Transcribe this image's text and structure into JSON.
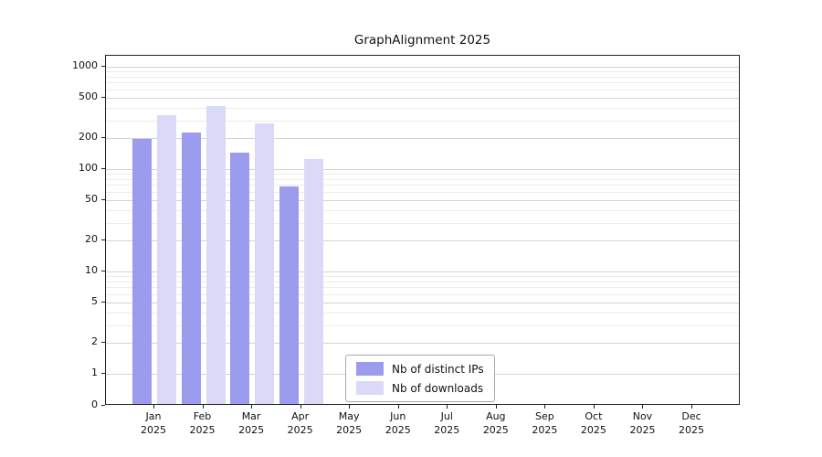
{
  "chart_data": {
    "type": "bar",
    "title": "GraphAlignment 2025",
    "categories": [
      "Jan",
      "Feb",
      "Mar",
      "Apr",
      "May",
      "Jun",
      "Jul",
      "Aug",
      "Sep",
      "Oct",
      "Nov",
      "Dec"
    ],
    "year_labels": [
      "2025",
      "2025",
      "2025",
      "2025",
      "2025",
      "2025",
      "2025",
      "2025",
      "2025",
      "2025",
      "2025",
      "2025"
    ],
    "series": [
      {
        "name": "Nb of distinct IPs",
        "color": "#9c9cee",
        "values": [
          190,
          220,
          140,
          65,
          null,
          null,
          null,
          null,
          null,
          null,
          null,
          null
        ]
      },
      {
        "name": "Nb of downloads",
        "color": "#dadaf8",
        "values": [
          320,
          400,
          270,
          120,
          null,
          null,
          null,
          null,
          null,
          null,
          null,
          null
        ]
      }
    ],
    "y_axis": {
      "scale": "symlog",
      "ticks": [
        0,
        1,
        2,
        5,
        10,
        20,
        50,
        100,
        200,
        500,
        1000
      ],
      "minor_ticks": [
        3,
        4,
        6,
        7,
        8,
        9,
        30,
        40,
        60,
        70,
        80,
        90,
        300,
        400,
        600,
        700,
        800,
        900
      ]
    },
    "xlabel": "",
    "ylabel": "",
    "grid": "horizontal",
    "legend_position": "bottom-center"
  }
}
